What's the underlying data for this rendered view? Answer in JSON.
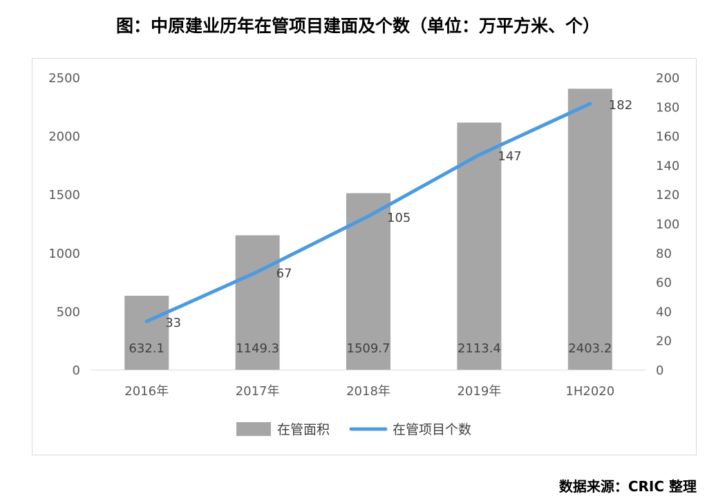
{
  "title": "图：中原建业历年在管项目建面及个数（单位：万平方米、个）",
  "source": "数据来源：CRIC 整理",
  "chart_data": {
    "type": "bar+line",
    "categories": [
      "2016年",
      "2017年",
      "2018年",
      "2019年",
      "1H2020"
    ],
    "series": [
      {
        "name": "在管面积",
        "type": "bar",
        "axis": "left",
        "values": [
          632.1,
          1149.3,
          1509.7,
          2113.4,
          2403.2
        ],
        "labels": [
          "632.1",
          "1149.3",
          "1509.7",
          "2113.4",
          "2403.2"
        ],
        "color": "#a6a6a6"
      },
      {
        "name": "在管项目个数",
        "type": "line",
        "axis": "right",
        "values": [
          33,
          67,
          105,
          147,
          182
        ],
        "labels": [
          "33",
          "67",
          "105",
          "147",
          "182"
        ],
        "color": "#4c9be0"
      }
    ],
    "y_left": {
      "ylim": [
        0,
        2500
      ],
      "ticks": [
        "0",
        "500",
        "1000",
        "1500",
        "2000",
        "2500"
      ]
    },
    "y_right": {
      "ylim": [
        0,
        200
      ],
      "ticks": [
        "0",
        "20",
        "40",
        "60",
        "80",
        "100",
        "120",
        "140",
        "160",
        "180",
        "200"
      ]
    },
    "grid": false,
    "legend_position": "bottom"
  }
}
